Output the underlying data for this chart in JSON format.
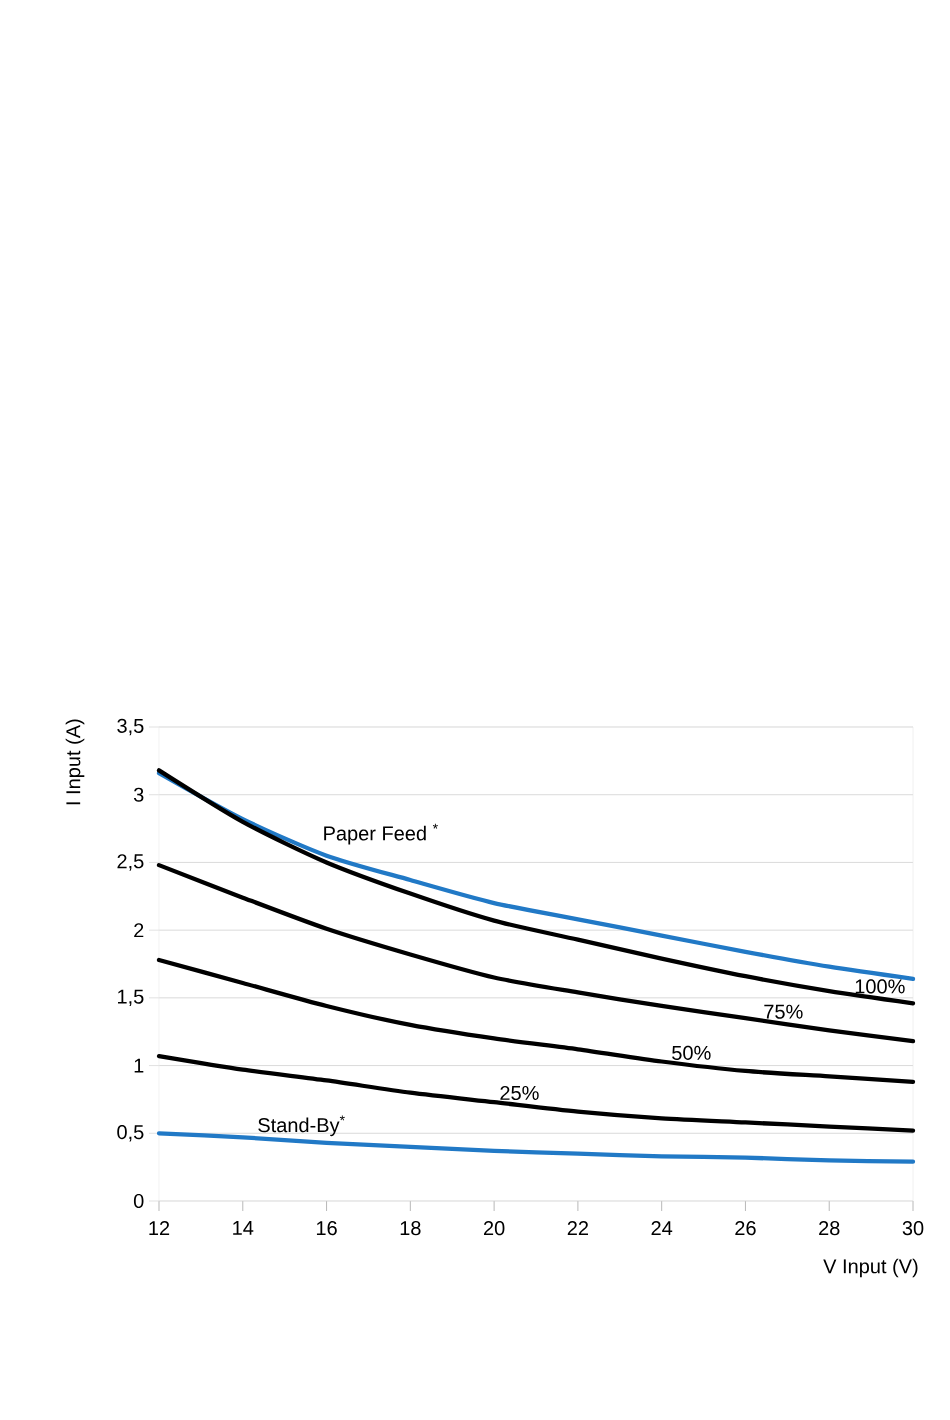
{
  "chart_data": {
    "type": "line",
    "xlabel": "V Input (V)",
    "ylabel": "I Input (A)",
    "x": [
      12,
      14,
      16,
      18,
      20,
      22,
      24,
      26,
      28,
      30
    ],
    "xlim": [
      12,
      30
    ],
    "xticks": [
      12,
      14,
      16,
      18,
      20,
      22,
      24,
      26,
      28,
      30
    ],
    "ylim": [
      0,
      3.5
    ],
    "yticks": [
      0,
      {
        "value": 0.5,
        "label": "0,5"
      },
      1,
      {
        "value": 1.5,
        "label": "1,5"
      },
      2,
      {
        "value": 2.5,
        "label": "2,5"
      },
      3,
      {
        "value": 3.5,
        "label": "3,5"
      }
    ],
    "grid": "y",
    "marker": "none",
    "line_style": "solid",
    "series": [
      {
        "name": "Paper Feed $^{*}$",
        "color": "#2179c6",
        "values": [
          3.16,
          2.82,
          2.55,
          2.37,
          2.2,
          2.08,
          1.96,
          1.84,
          1.73,
          1.64
        ]
      },
      {
        "name": "100%",
        "color": "#000000",
        "values": [
          3.18,
          2.8,
          2.5,
          2.27,
          2.07,
          1.93,
          1.79,
          1.66,
          1.55,
          1.46
        ]
      },
      {
        "name": "75%",
        "color": "#000000",
        "values": [
          2.48,
          2.24,
          2.01,
          1.82,
          1.65,
          1.54,
          1.44,
          1.35,
          1.26,
          1.18
        ]
      },
      {
        "name": "50%",
        "color": "#000000",
        "values": [
          1.78,
          1.61,
          1.44,
          1.3,
          1.2,
          1.12,
          1.03,
          0.96,
          0.92,
          0.88
        ]
      },
      {
        "name": "25%",
        "color": "#000000",
        "values": [
          1.07,
          0.97,
          0.89,
          0.8,
          0.73,
          0.66,
          0.61,
          0.58,
          0.55,
          0.52
        ]
      },
      {
        "name": "Stand-By$^{*}$",
        "color": "#2179c6",
        "values": [
          0.5,
          0.47,
          0.43,
          0.4,
          0.37,
          0.35,
          0.33,
          0.32,
          0.3,
          0.29
        ]
      }
    ]
  }
}
